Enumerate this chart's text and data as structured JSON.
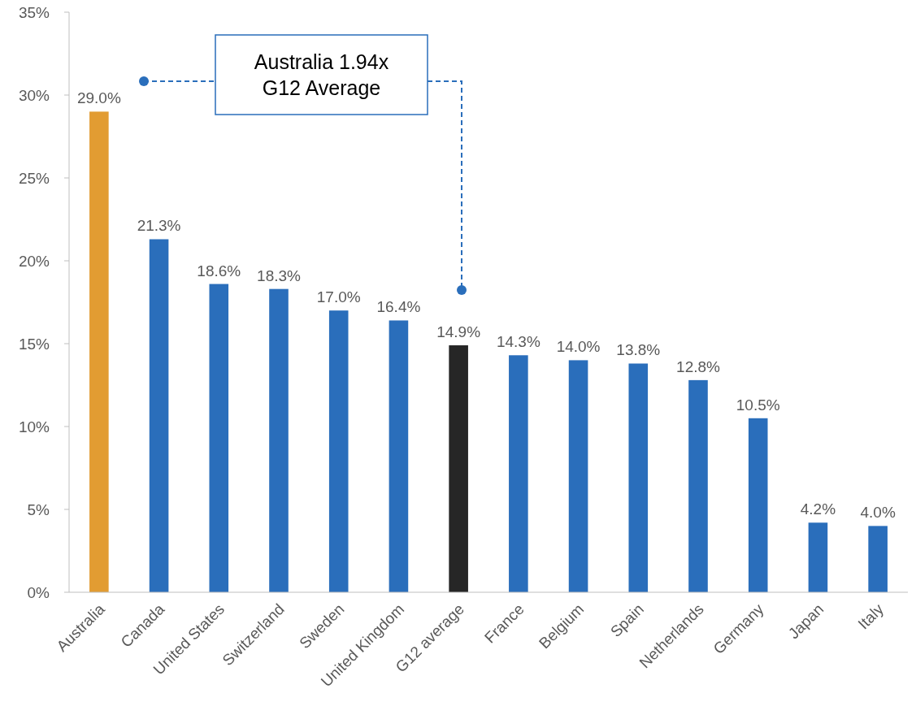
{
  "chart_data": {
    "type": "bar",
    "categories": [
      "Australia",
      "Canada",
      "United States",
      "Switzerland",
      "Sweden",
      "United Kingdom",
      "G12 average",
      "France",
      "Belgium",
      "Spain",
      "Netherlands",
      "Germany",
      "Japan",
      "Italy"
    ],
    "values": [
      29.0,
      21.3,
      18.6,
      18.3,
      17.0,
      16.4,
      14.9,
      14.3,
      14.0,
      13.8,
      12.8,
      10.5,
      4.2,
      4.0
    ],
    "colors": [
      "#e29c32",
      "#2a6ebb",
      "#2a6ebb",
      "#2a6ebb",
      "#2a6ebb",
      "#2a6ebb",
      "#262626",
      "#2a6ebb",
      "#2a6ebb",
      "#2a6ebb",
      "#2a6ebb",
      "#2a6ebb",
      "#2a6ebb",
      "#2a6ebb"
    ],
    "ylim": [
      0,
      35
    ],
    "yticks": [
      {
        "value": 0,
        "label": "0%"
      },
      {
        "value": 5,
        "label": "5%"
      },
      {
        "value": 10,
        "label": "10%"
      },
      {
        "value": 15,
        "label": "15%"
      },
      {
        "value": 20,
        "label": "20%"
      },
      {
        "value": 25,
        "label": "25%"
      },
      {
        "value": 30,
        "label": "30%"
      },
      {
        "value": 35,
        "label": "35%"
      }
    ],
    "value_labels": [
      "29.0%",
      "21.3%",
      "18.6%",
      "18.3%",
      "17.0%",
      "16.4%",
      "14.9%",
      "14.3%",
      "14.0%",
      "13.8%",
      "12.8%",
      "10.5%",
      "4.2%",
      "4.0%"
    ],
    "grid": false,
    "annotations": [
      "Australia 1.94x\nG12 Average"
    ]
  }
}
